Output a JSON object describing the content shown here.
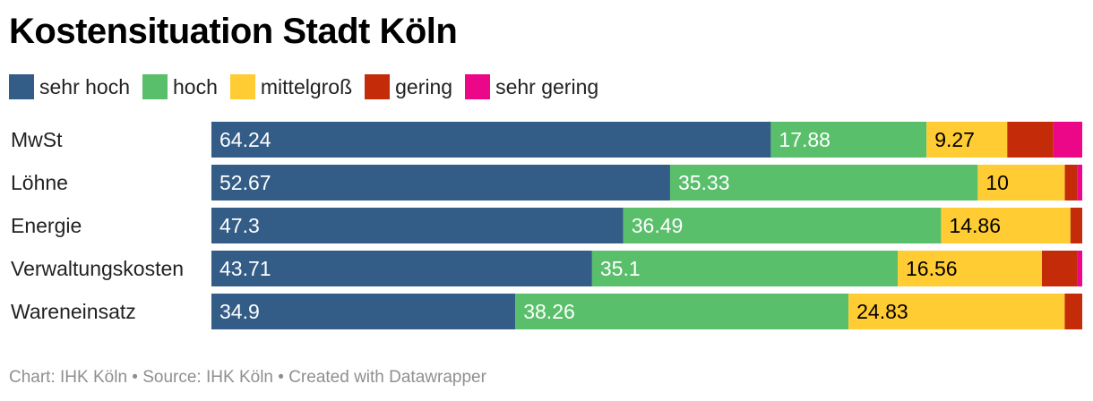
{
  "title": "Kostensituation Stadt Köln",
  "footer": {
    "chart_label": "Chart:",
    "chart_source": "IHK Köln",
    "source_label": "Source:",
    "source_value": "IHK Köln",
    "created_with": "Created with Datawrapper"
  },
  "chart_data": {
    "type": "bar",
    "orientation": "horizontal",
    "stacked": true,
    "normalized": true,
    "title": "Kostensituation Stadt Köln",
    "legend_position": "top-left",
    "grid": false,
    "xlim": [
      0,
      100
    ],
    "categories": [
      "MwSt",
      "Löhne",
      "Energie",
      "Verwaltungskosten",
      "Wareneinsatz"
    ],
    "series": [
      {
        "name": "sehr hoch",
        "color": "#335c87",
        "label_color": "#ffffff",
        "values": [
          64.24,
          52.67,
          47.3,
          43.71,
          34.9
        ]
      },
      {
        "name": "hoch",
        "color": "#59bf6b",
        "label_color": "#ffffff",
        "values": [
          17.88,
          35.33,
          36.49,
          35.1,
          38.26
        ]
      },
      {
        "name": "mittelgroß",
        "color": "#ffcc33",
        "label_color": "#000000",
        "values": [
          9.27,
          10,
          14.86,
          16.56,
          24.83
        ]
      },
      {
        "name": "gering",
        "color": "#c42b08",
        "label_color": "#ffffff",
        "values": [
          5.3,
          1.4,
          1.35,
          4.1,
          2.01
        ]
      },
      {
        "name": "sehr gering",
        "color": "#eb0788",
        "label_color": "#ffffff",
        "values": [
          3.31,
          0.6,
          0,
          0.53,
          0
        ]
      }
    ],
    "value_labels_shown_for": [
      "sehr hoch",
      "hoch",
      "mittelgroß"
    ]
  }
}
